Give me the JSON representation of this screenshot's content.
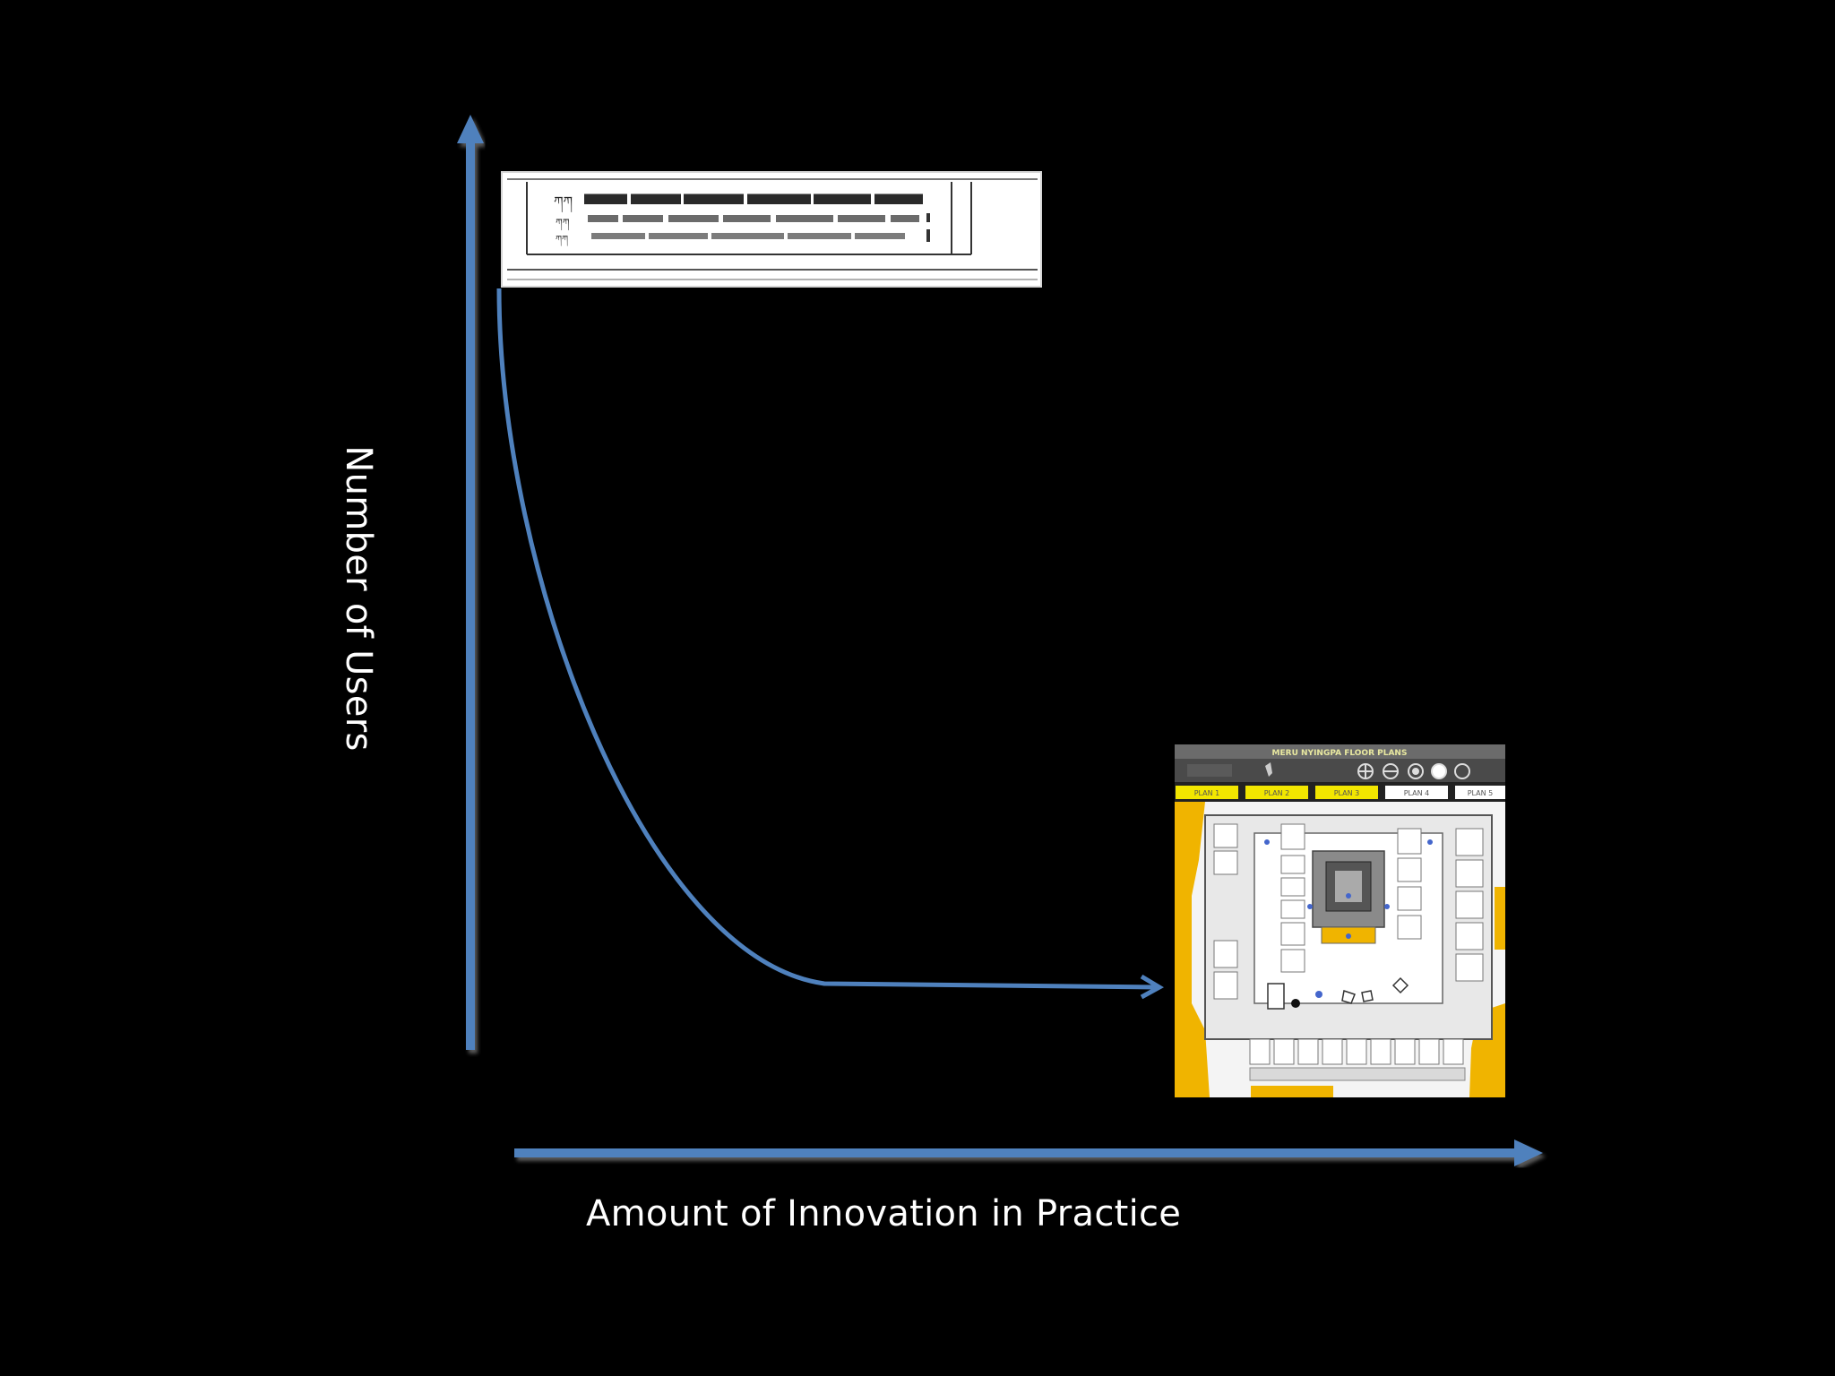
{
  "slide": {
    "background": "#000000",
    "accent": "#4f81bd"
  },
  "diagram": {
    "x_axis_label": "Amount of Innovation in Practice",
    "y_axis_label": "Number of Users",
    "curve": "decreasing, high at low innovation, flattening to near zero at high innovation",
    "images": [
      {
        "name": "manuscript-image",
        "depicts": "Tibetan manuscript text strip (traditional practice, many users)"
      },
      {
        "name": "floor-plan-image",
        "title": "MERU NYINGPA FLOOR PLANS",
        "tabs": [
          "PLAN 1",
          "PLAN 2",
          "PLAN 3",
          "PLAN 4",
          "PLAN 5"
        ],
        "tab_colors": [
          "#f2e600",
          "#f2e600",
          "#f2e600",
          "#ffffff",
          "#ffffff"
        ],
        "depicts": "digital interactive floor plan (innovative practice, few users)"
      }
    ]
  }
}
